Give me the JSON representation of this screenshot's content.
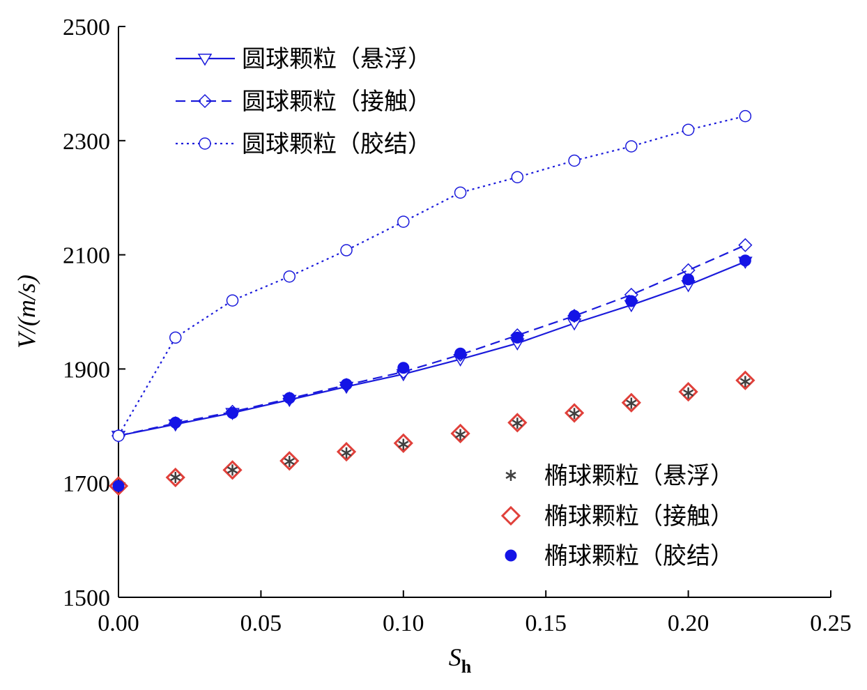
{
  "chart_data": {
    "type": "scatter",
    "xlabel": "S",
    "xlabel_sub": "h",
    "ylabel": "V/(m/s)",
    "xlim": [
      0.0,
      0.25
    ],
    "ylim": [
      1500,
      2500
    ],
    "x_ticks": [
      0.0,
      0.05,
      0.1,
      0.15,
      0.2,
      0.25
    ],
    "x_tick_labels": [
      "0.00",
      "0.05",
      "0.10",
      "0.15",
      "0.20",
      "0.25"
    ],
    "y_ticks": [
      1500,
      1700,
      1900,
      2100,
      2300,
      2500
    ],
    "y_tick_labels": [
      "1500",
      "1700",
      "1900",
      "2100",
      "2300",
      "2500"
    ],
    "grid": false,
    "legend_placement": [
      "top-left",
      "bottom-right"
    ],
    "x": [
      0.0,
      0.02,
      0.04,
      0.06,
      0.08,
      0.1,
      0.12,
      0.14,
      0.16,
      0.18,
      0.2,
      0.22
    ],
    "series": [
      {
        "name": "圆球颗粒（悬浮）",
        "style": "line-solid",
        "marker": "triangle-down-open",
        "color": "#1a1adb",
        "values": [
          1783,
          1803,
          1823,
          1846,
          1869,
          1891,
          1917,
          1945,
          1980,
          2012,
          2047,
          2088
        ]
      },
      {
        "name": "圆球颗粒（接触）",
        "style": "line-dashed",
        "marker": "diamond-open",
        "color": "#1a1adb",
        "values": [
          1783,
          1805,
          1825,
          1848,
          1872,
          1895,
          1925,
          1959,
          1993,
          2030,
          2073,
          2117
        ]
      },
      {
        "name": "圆球颗粒（胶结）",
        "style": "line-dotted",
        "marker": "circle-open",
        "color": "#1a1adb",
        "values": [
          1783,
          1955,
          2020,
          2062,
          2108,
          2158,
          2209,
          2236,
          2265,
          2290,
          2319,
          2343
        ]
      },
      {
        "name": "椭球颗粒（悬浮）",
        "style": "markers",
        "marker": "asterisk",
        "color": "#404040",
        "values": [
          1695,
          1710,
          1723,
          1738,
          1753,
          1768,
          1785,
          1805,
          1822,
          1840,
          1858,
          1878
        ]
      },
      {
        "name": "椭球颗粒（接触）",
        "style": "markers",
        "marker": "diamond-open",
        "color": "#e0403a",
        "values": [
          1695,
          1710,
          1723,
          1739,
          1755,
          1770,
          1787,
          1806,
          1823,
          1841,
          1860,
          1880
        ]
      },
      {
        "name": "椭球颗粒（胶结）",
        "style": "markers",
        "marker": "circle-filled",
        "color": "#1414e6",
        "values": [
          1695,
          1806,
          1823,
          1849,
          1873,
          1902,
          1927,
          1955,
          1993,
          2019,
          2057,
          2090
        ]
      }
    ]
  }
}
